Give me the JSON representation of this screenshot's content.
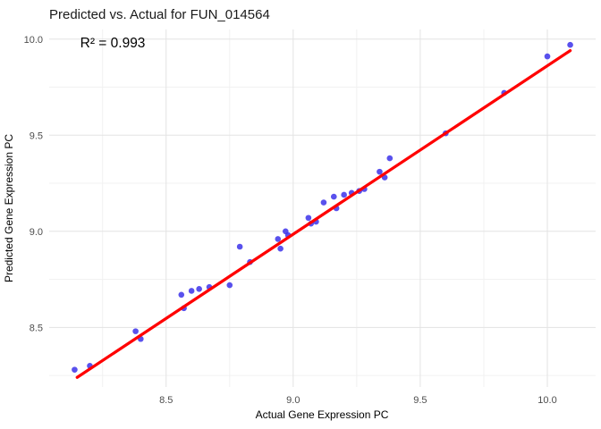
{
  "title": "Predicted vs. Actual for FUN_014564",
  "annotation_text": "R² = 0.993",
  "colors": {
    "point": "#3c32ea",
    "regression_line": "#ff0000",
    "grid_major": "#e3e3e3",
    "grid_minor": "#f1f1f1",
    "tick_label": "#4d4d4d",
    "text": "#1a1a1a",
    "background": "#ffffff"
  },
  "chart_data": {
    "type": "scatter",
    "title": "Predicted vs. Actual for FUN_014564",
    "xlabel": "Actual Gene Expression PC",
    "ylabel": "Predicted Gene Expression PC",
    "annotation": {
      "text": "R² = 0.993",
      "x": 8.29,
      "y": 9.98
    },
    "xlim": [
      8.04,
      10.19
    ],
    "ylim": [
      8.19,
      10.05
    ],
    "x_ticks": [
      8.5,
      9.0,
      9.5,
      10.0
    ],
    "y_ticks": [
      8.5,
      9.0,
      9.5,
      10.0
    ],
    "x_minor_ticks": [
      8.25,
      8.75,
      9.25,
      9.75
    ],
    "y_minor_ticks": [
      8.25,
      8.75,
      9.25,
      9.75
    ],
    "tick_decimals": 1,
    "grid": true,
    "legend": false,
    "point_color": "#3c32ea",
    "point_opacity": 0.85,
    "point_radius": 3.3,
    "line_color": "#ff0000",
    "line_width": 3.3,
    "regression_line": {
      "x1": 8.15,
      "y1": 8.24,
      "x2": 10.09,
      "y2": 9.94
    },
    "points": [
      [
        8.14,
        8.28
      ],
      [
        8.2,
        8.3
      ],
      [
        8.38,
        8.48
      ],
      [
        8.4,
        8.44
      ],
      [
        8.56,
        8.67
      ],
      [
        8.57,
        8.6
      ],
      [
        8.6,
        8.69
      ],
      [
        8.63,
        8.7
      ],
      [
        8.67,
        8.71
      ],
      [
        8.75,
        8.72
      ],
      [
        8.79,
        8.92
      ],
      [
        8.83,
        8.84
      ],
      [
        8.94,
        8.96
      ],
      [
        8.95,
        8.91
      ],
      [
        8.97,
        9.0
      ],
      [
        8.98,
        8.98
      ],
      [
        9.06,
        9.07
      ],
      [
        9.07,
        9.04
      ],
      [
        9.09,
        9.05
      ],
      [
        9.12,
        9.15
      ],
      [
        9.16,
        9.18
      ],
      [
        9.17,
        9.12
      ],
      [
        9.2,
        9.19
      ],
      [
        9.23,
        9.2
      ],
      [
        9.26,
        9.21
      ],
      [
        9.28,
        9.22
      ],
      [
        9.34,
        9.31
      ],
      [
        9.36,
        9.28
      ],
      [
        9.38,
        9.38
      ],
      [
        9.6,
        9.51
      ],
      [
        9.83,
        9.72
      ],
      [
        10.0,
        9.91
      ],
      [
        10.09,
        9.97
      ]
    ]
  }
}
